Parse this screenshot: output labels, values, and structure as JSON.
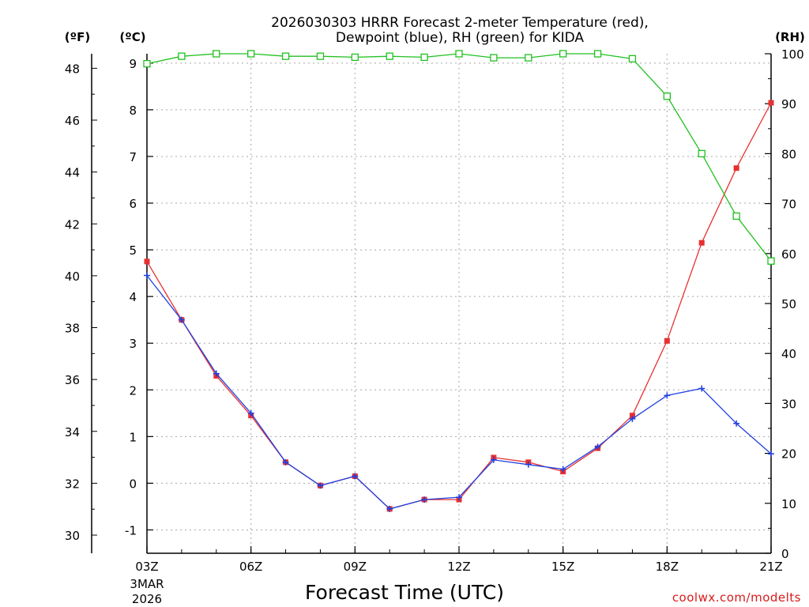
{
  "chart_data": {
    "type": "line",
    "title_line1": "2026030303 HRRR Forecast 2-meter Temperature (red),",
    "title_line2": "Dewpoint (blue), RH (green) for KIDA",
    "xlabel": "Forecast Time (UTC)",
    "date_label_line1": "3MAR",
    "date_label_line2": "2026",
    "credit": "coolwx.com/modelts",
    "unit_left_f": "(ºF)",
    "unit_left_c": "(ºC)",
    "unit_right": "(RH)",
    "x_hours": [
      3,
      4,
      5,
      6,
      7,
      8,
      9,
      10,
      11,
      12,
      13,
      14,
      15,
      16,
      17,
      18,
      19,
      20,
      21
    ],
    "x_tick_hours": [
      3,
      6,
      9,
      12,
      15,
      18,
      21
    ],
    "x_tick_labels": [
      "03Z",
      "06Z",
      "09Z",
      "12Z",
      "15Z",
      "18Z",
      "21Z"
    ],
    "ylim_c": [
      -1.5,
      9.2
    ],
    "yticks_c": [
      -1,
      0,
      1,
      2,
      3,
      4,
      5,
      6,
      7,
      8,
      9
    ],
    "yticks_f": [
      30,
      32,
      34,
      36,
      38,
      40,
      42,
      44,
      46,
      48
    ],
    "ylim_rh": [
      0,
      100
    ],
    "yticks_rh": [
      0,
      10,
      20,
      30,
      40,
      50,
      60,
      70,
      80,
      90,
      100
    ],
    "series": [
      {
        "name": "Temperature",
        "axis": "c",
        "color": "#e83030",
        "marker": "filled-square",
        "values": [
          4.75,
          3.5,
          2.3,
          1.45,
          0.45,
          -0.05,
          0.15,
          -0.55,
          -0.35,
          -0.35,
          0.55,
          0.45,
          0.25,
          0.75,
          1.45,
          3.05,
          5.15,
          6.75,
          8.15
        ]
      },
      {
        "name": "Dewpoint",
        "axis": "c",
        "color": "#2040e0",
        "marker": "plus",
        "values": [
          4.45,
          3.5,
          2.35,
          1.5,
          0.45,
          -0.05,
          0.15,
          -0.55,
          -0.35,
          -0.3,
          0.5,
          0.4,
          0.3,
          0.78,
          1.38,
          1.88,
          2.03,
          1.28,
          0.63
        ]
      },
      {
        "name": "RH",
        "axis": "rh",
        "color": "#20c020",
        "marker": "open-square",
        "values": [
          98,
          99.5,
          100,
          100,
          99.5,
          99.5,
          99.3,
          99.5,
          99.3,
          100,
          99.2,
          99.2,
          100,
          100,
          99,
          91.5,
          80,
          67.5,
          58.5
        ]
      }
    ],
    "grid": true
  }
}
